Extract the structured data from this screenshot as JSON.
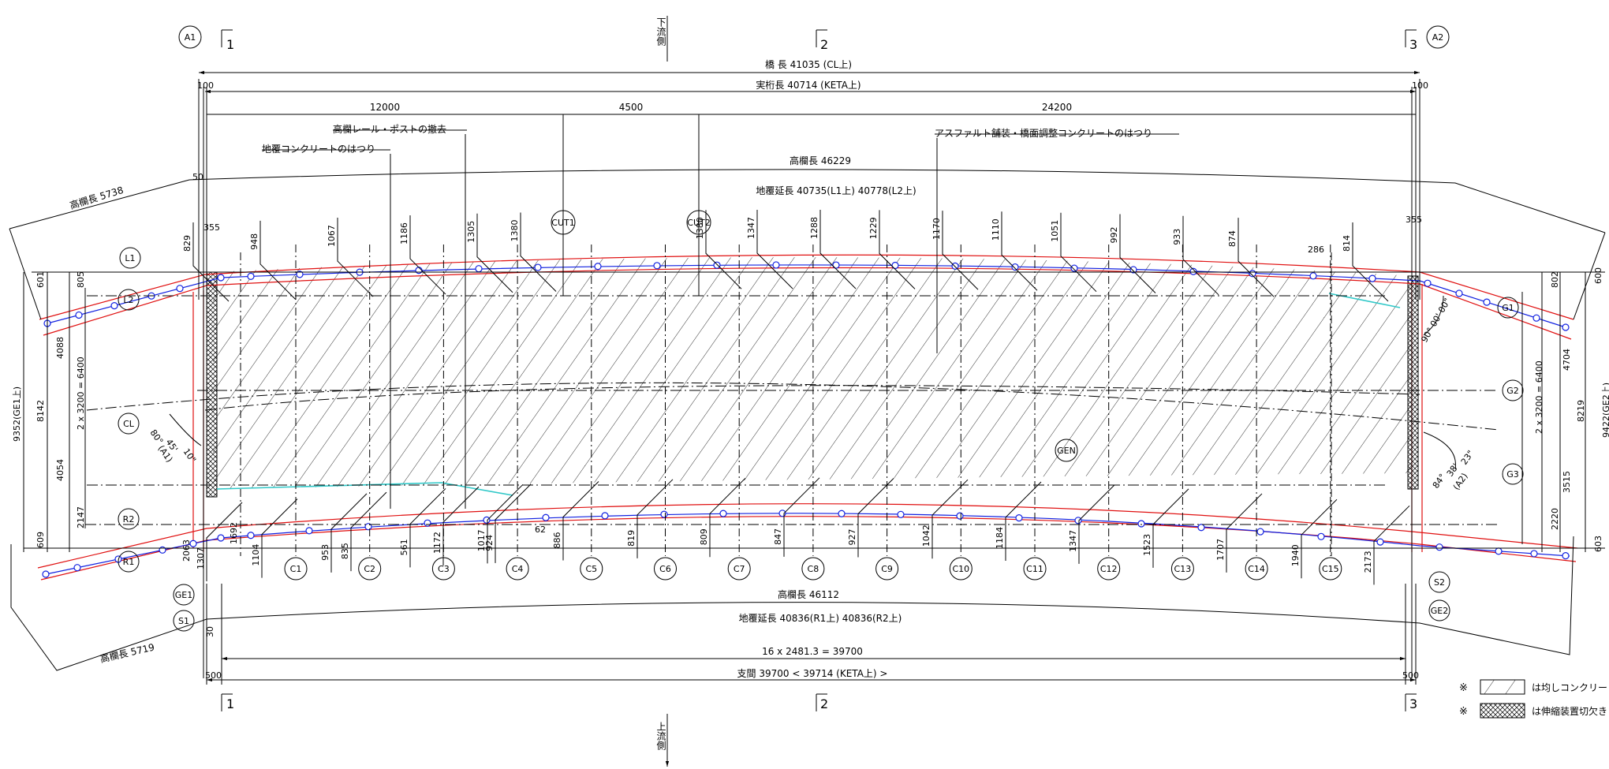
{
  "flow": {
    "downstream": "下流側",
    "upstream": "上流側"
  },
  "abutments": {
    "a1": "A1",
    "a2": "A2"
  },
  "supports": {
    "s1": "1",
    "s2": "2",
    "s3": "3"
  },
  "dimensions": {
    "bridge_length": "橋 長  41035 (CL上)",
    "girder_length": "実桁長  40714 (KETA上)",
    "end_100_left": "100",
    "end_100_right": "100",
    "span_12000": "12000",
    "span_4500": "4500",
    "span_24200": "24200",
    "rail_length_top": "高欄長  46229",
    "curb_length_top": "地覆延長  40735(L1上) 40778(L2上)",
    "rail_length_left_top": "高欄長 5738",
    "rail_length_bottom": "高欄長 46112",
    "curb_length_bottom": "地覆延長  40836(R1上) 40836(R2上)",
    "rail_length_left_bottom": "高欄長 5719",
    "division": "16 x 2481.3 = 39700",
    "span": "支間  39700 < 39714 (KETA上) >",
    "end_500_left": "500",
    "end_500_right": "500",
    "d50": "50",
    "d355_left": "355",
    "d355_right": "355",
    "d286": "286",
    "d62": "62",
    "d30": "30"
  },
  "notes": {
    "rail_removal": "高欄レール・ポストの撤去",
    "curb_chipping": "地覆コンクリートのはつり",
    "asphalt_chipping": "アスファルト舗装・橋面調整コンクリートのはつり"
  },
  "left_dims": {
    "total": "9352(GE1上)",
    "d8142": "8142",
    "d601": "601",
    "d805": "805",
    "d4088": "4088",
    "d4054": "4054",
    "d2147": "2147",
    "d609": "609",
    "d6400": "2 x 3200 = 6400"
  },
  "right_dims": {
    "total": "9422(GE2上)",
    "d8219": "8219",
    "d600": "600",
    "d802": "802",
    "d4704": "4704",
    "d3515": "3515",
    "d2220": "2220",
    "d603": "603",
    "d6400": "2 x 3200 = 6400"
  },
  "angles": {
    "a1_main": "80°",
    "a1_min": "45'",
    "a1_sec": "10\"",
    "a1_tag": "(A1)",
    "a2_right": "90° 00' 00\"",
    "a2_main": "84°",
    "a2_min": "38'",
    "a2_sec": "23\"",
    "a2_tag": "(A2)"
  },
  "markers": {
    "l1": "L1",
    "l2": "L2",
    "cl": "CL",
    "r2": "R2",
    "r1": "R1",
    "ge1": "GE1",
    "s1": "S1",
    "g1": "G1",
    "g2": "G2",
    "g3": "G3",
    "s2": "S2",
    "ge2": "GE2",
    "gen": "GEN",
    "cut1": "CUT1",
    "cut2": "CUT2"
  },
  "cross_beams": [
    "C1",
    "C2",
    "C3",
    "C4",
    "C5",
    "C6",
    "C7",
    "C8",
    "C9",
    "C10",
    "C11",
    "C12",
    "C13",
    "C14",
    "C15"
  ],
  "top_values": [
    "829",
    "948",
    "1067",
    "1186",
    "1305",
    "1380",
    "1380",
    "1347",
    "1288",
    "1229",
    "1170",
    "1110",
    "1051",
    "992",
    "933",
    "874",
    "814"
  ],
  "bottom_values": [
    "1307",
    "1104",
    "953",
    "835",
    "561",
    "1172",
    "1017",
    "924",
    "886",
    "819",
    "809",
    "847",
    "927",
    "1042",
    "1184",
    "1347",
    "1523",
    "1707",
    "1940",
    "2173",
    "2063",
    "1692"
  ],
  "legend": {
    "mark": "※",
    "hatch_label": "は均しコンクリー",
    "cross_label": "は伸縮装置切欠き"
  }
}
